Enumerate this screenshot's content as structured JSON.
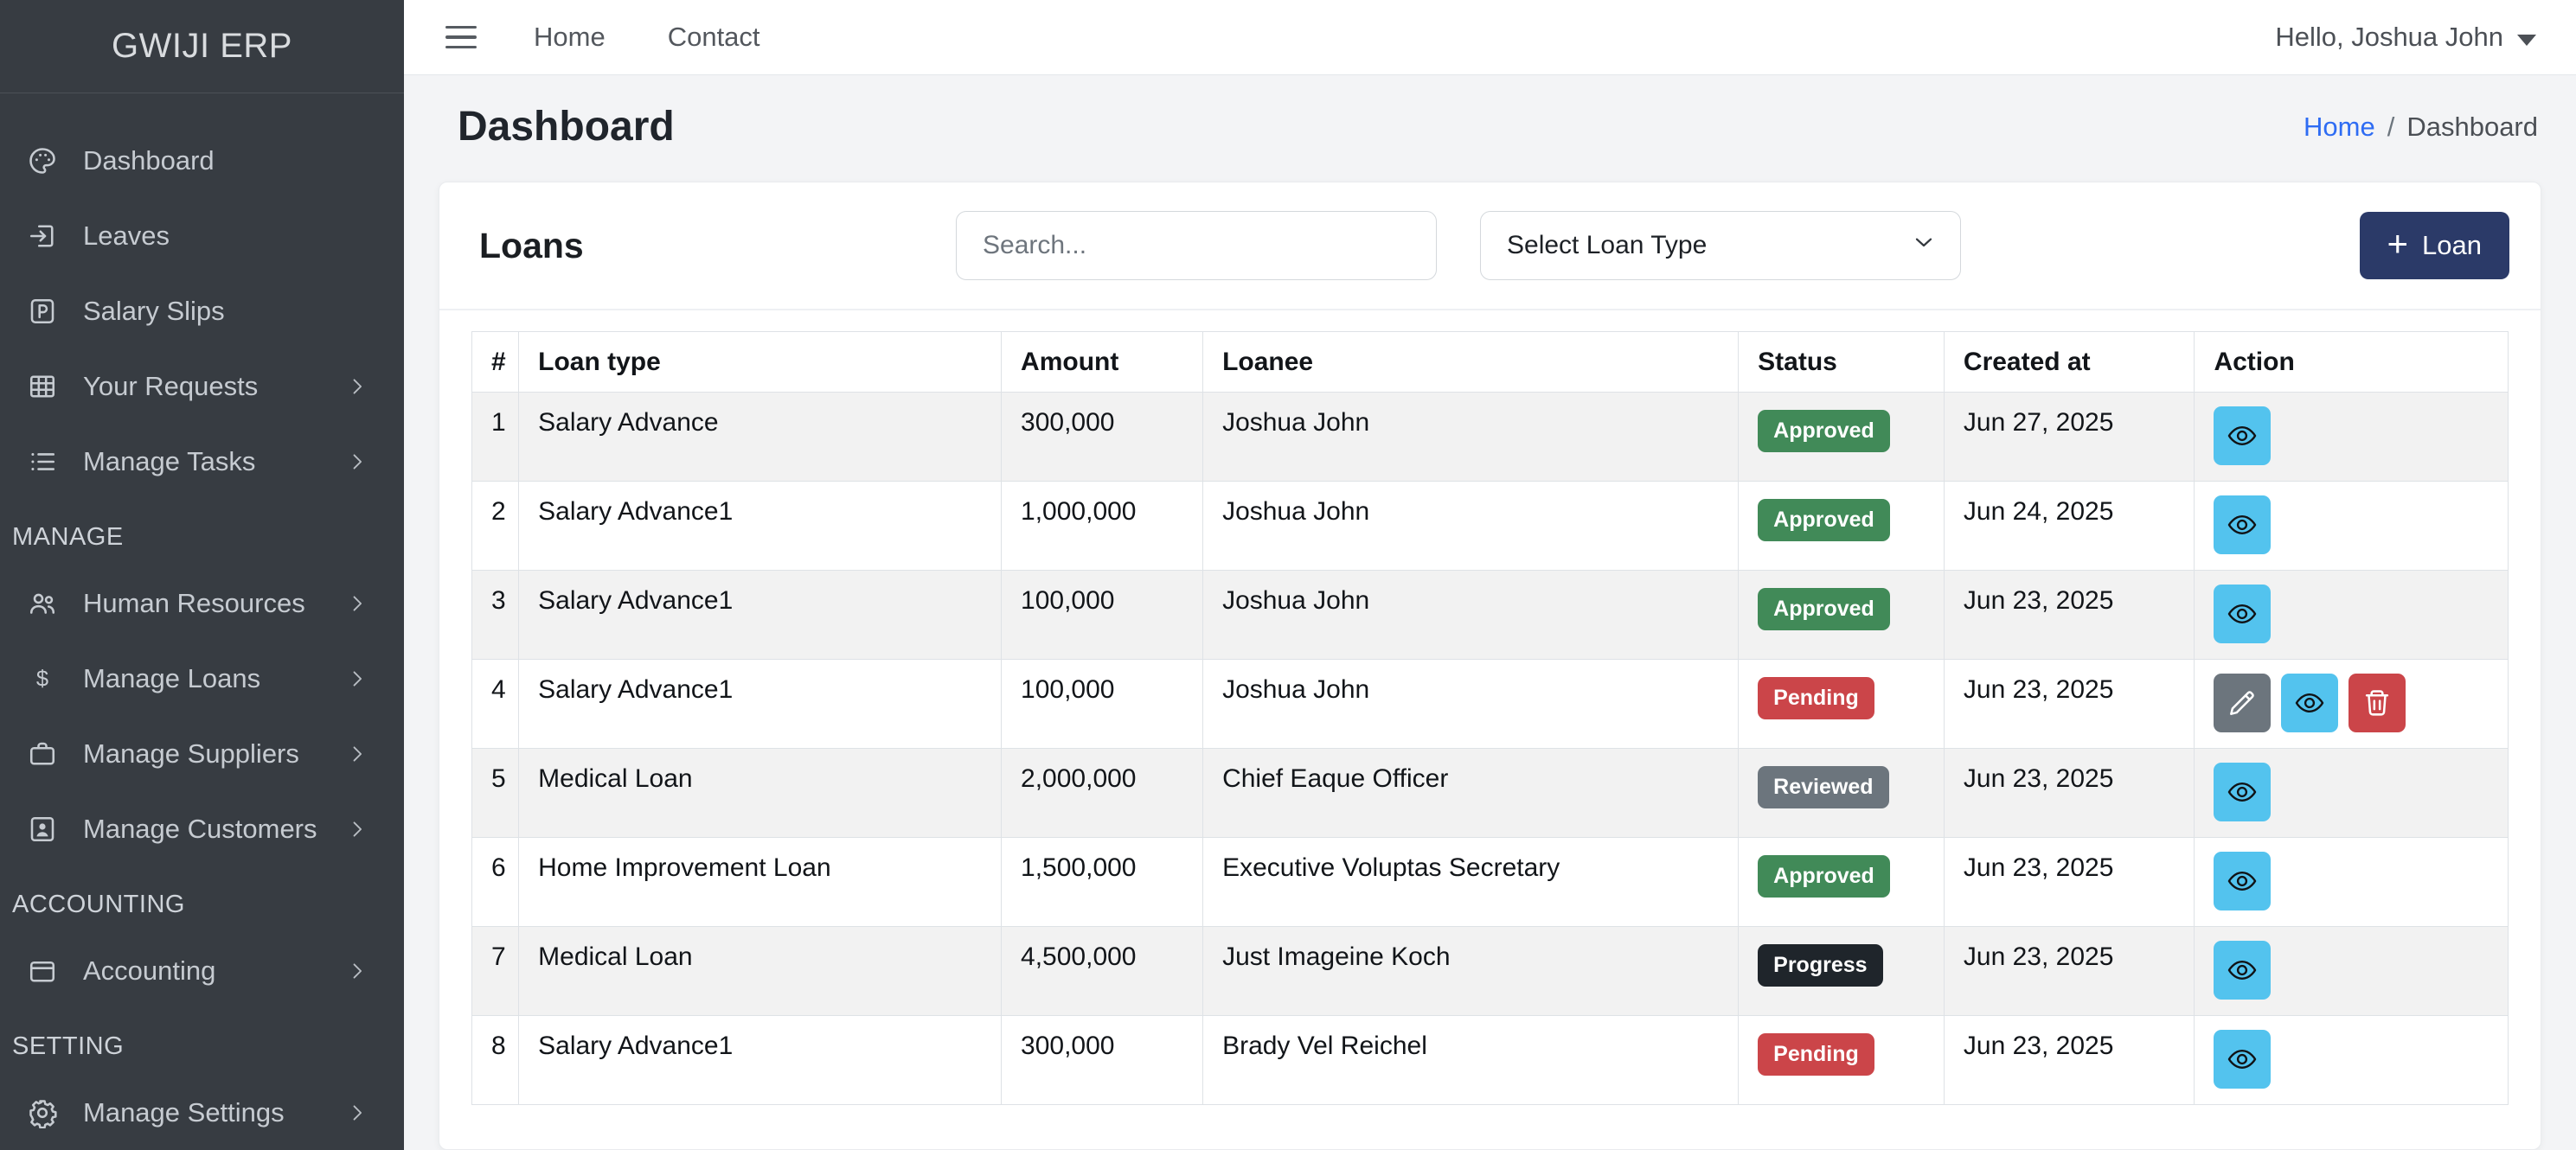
{
  "sidebar": {
    "brand": "GWIJI ERP",
    "sections": [
      {
        "header": null,
        "items": [
          {
            "label": "Dashboard",
            "icon": "palette-icon",
            "chevron": false
          },
          {
            "label": "Leaves",
            "icon": "box-arrow-in-right-icon",
            "chevron": false
          },
          {
            "label": "Salary Slips",
            "icon": "p-square-icon",
            "chevron": false
          },
          {
            "label": "Your Requests",
            "icon": "table-icon",
            "chevron": true
          },
          {
            "label": "Manage Tasks",
            "icon": "list-icon",
            "chevron": true
          }
        ]
      },
      {
        "header": "MANAGE",
        "items": [
          {
            "label": "Human Resources",
            "icon": "people-icon",
            "chevron": true
          },
          {
            "label": "Manage Loans",
            "icon": "dollar-icon",
            "chevron": true
          },
          {
            "label": "Manage Suppliers",
            "icon": "briefcase-icon",
            "chevron": true
          },
          {
            "label": "Manage Customers",
            "icon": "person-badge-icon",
            "chevron": true
          }
        ]
      },
      {
        "header": "ACCOUNTING",
        "items": [
          {
            "label": "Accounting",
            "icon": "wallet-icon",
            "chevron": true
          }
        ]
      },
      {
        "header": "SETTING",
        "items": [
          {
            "label": "Manage Settings",
            "icon": "gear-icon",
            "chevron": true
          }
        ]
      }
    ]
  },
  "topbar": {
    "links": [
      "Home",
      "Contact"
    ],
    "user_greeting": "Hello, Joshua John"
  },
  "page": {
    "title": "Dashboard",
    "breadcrumb": {
      "home": "Home",
      "separator": "/",
      "current": "Dashboard"
    }
  },
  "loans_card": {
    "title": "Loans",
    "search_placeholder": "Search...",
    "loan_type_placeholder": "Select Loan Type",
    "add_button_plus": "+",
    "add_button_label": "Loan"
  },
  "table": {
    "columns": [
      "#",
      "Loan type",
      "Amount",
      "Loanee",
      "Status",
      "Created at",
      "Action"
    ],
    "rows": [
      {
        "num": "1",
        "type": "Salary Advance",
        "amount": "300,000",
        "loanee": "Joshua John",
        "status": "Approved",
        "created": "Jun 27, 2025",
        "actions": [
          "view"
        ]
      },
      {
        "num": "2",
        "type": "Salary Advance1",
        "amount": "1,000,000",
        "loanee": "Joshua John",
        "status": "Approved",
        "created": "Jun 24, 2025",
        "actions": [
          "view"
        ]
      },
      {
        "num": "3",
        "type": "Salary Advance1",
        "amount": "100,000",
        "loanee": "Joshua John",
        "status": "Approved",
        "created": "Jun 23, 2025",
        "actions": [
          "view"
        ]
      },
      {
        "num": "4",
        "type": "Salary Advance1",
        "amount": "100,000",
        "loanee": "Joshua John",
        "status": "Pending",
        "created": "Jun 23, 2025",
        "actions": [
          "edit",
          "view",
          "delete"
        ]
      },
      {
        "num": "5",
        "type": "Medical Loan",
        "amount": "2,000,000",
        "loanee": "Chief Eaque Officer",
        "status": "Reviewed",
        "created": "Jun 23, 2025",
        "actions": [
          "view"
        ]
      },
      {
        "num": "6",
        "type": "Home Improvement Loan",
        "amount": "1,500,000",
        "loanee": "Executive Voluptas Secretary",
        "status": "Approved",
        "created": "Jun 23, 2025",
        "actions": [
          "view"
        ]
      },
      {
        "num": "7",
        "type": "Medical Loan",
        "amount": "4,500,000",
        "loanee": "Just Imageine Koch",
        "status": "Progress",
        "created": "Jun 23, 2025",
        "actions": [
          "view"
        ]
      },
      {
        "num": "8",
        "type": "Salary Advance1",
        "amount": "300,000",
        "loanee": "Brady Vel Reichel",
        "status": "Pending",
        "created": "Jun 23, 2025",
        "actions": [
          "view"
        ]
      }
    ]
  },
  "colors": {
    "sidebar_bg": "#373c42",
    "accent_navy": "#2b3a68",
    "link_blue": "#2e6cf3",
    "status": {
      "Approved": "#418a58",
      "Pending": "#cb4549",
      "Reviewed": "#6c757d",
      "Progress": "#1f252b"
    },
    "action_buttons": {
      "view": "#53c3ee",
      "edit": "#6c757d",
      "delete": "#cb4549"
    }
  }
}
